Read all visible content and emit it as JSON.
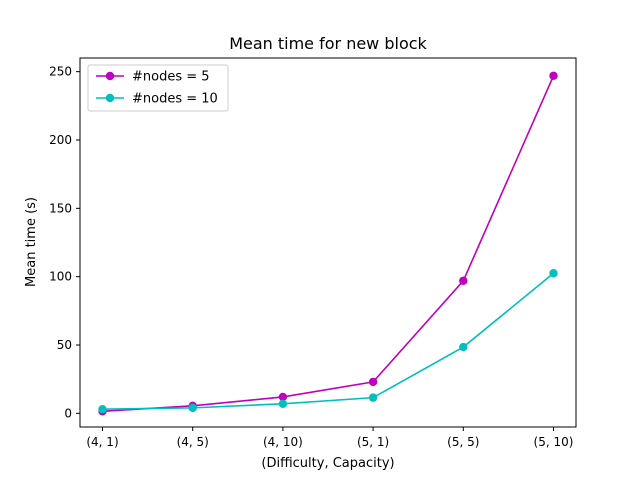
{
  "chart_data": {
    "type": "line",
    "title": "Mean time for new block",
    "xlabel": "(Difficulty, Capacity)",
    "ylabel": "Mean time (s)",
    "categories": [
      "(4, 1)",
      "(4, 5)",
      "(4, 10)",
      "(5, 1)",
      "(5, 5)",
      "(5, 10)"
    ],
    "ylim": [
      -10,
      260
    ],
    "yticks": [
      0,
      50,
      100,
      150,
      200,
      250
    ],
    "grid": false,
    "legend_position": "top-left",
    "series": [
      {
        "name": "#nodes = 5",
        "color": "#bf00bf",
        "marker": "circle",
        "values": [
          1.5,
          5.5,
          12,
          23,
          97,
          247
        ]
      },
      {
        "name": "#nodes = 10",
        "color": "#00bfbf",
        "marker": "circle",
        "values": [
          3,
          4,
          7,
          11.5,
          48.5,
          102.5
        ]
      }
    ]
  }
}
